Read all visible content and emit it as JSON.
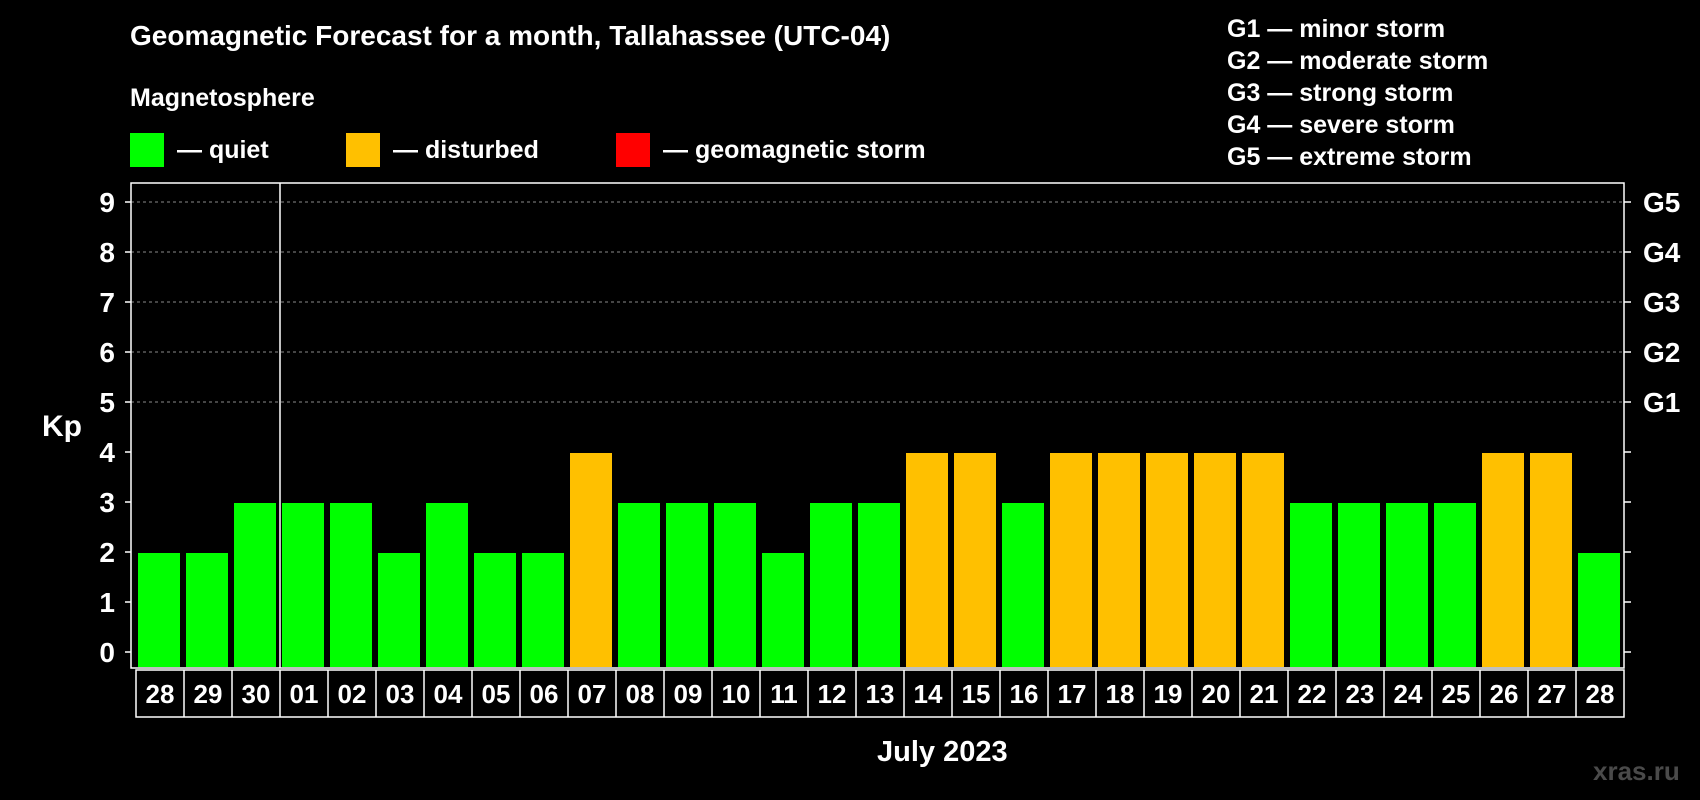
{
  "chart_data": {
    "type": "bar",
    "title": "Geomagnetic Forecast for a month, Tallahassee (UTC-04)",
    "xlabel": "July 2023",
    "ylabel": "Kp",
    "ylim": [
      0,
      9
    ],
    "yticks": [
      "0",
      "1",
      "2",
      "3",
      "4",
      "5",
      "6",
      "7",
      "8",
      "9"
    ],
    "right_ticks": [
      {
        "kp": 5,
        "label": "G1"
      },
      {
        "kp": 6,
        "label": "G2"
      },
      {
        "kp": 7,
        "label": "G3"
      },
      {
        "kp": 8,
        "label": "G4"
      },
      {
        "kp": 9,
        "label": "G5"
      }
    ],
    "categories": [
      "28",
      "29",
      "30",
      "01",
      "02",
      "03",
      "04",
      "05",
      "06",
      "07",
      "08",
      "09",
      "10",
      "11",
      "12",
      "13",
      "14",
      "15",
      "16",
      "17",
      "18",
      "19",
      "20",
      "21",
      "22",
      "23",
      "24",
      "25",
      "26",
      "27",
      "28"
    ],
    "values": [
      2,
      2,
      3,
      3,
      3,
      2,
      3,
      2,
      2,
      4,
      3,
      3,
      3,
      2,
      3,
      3,
      4,
      4,
      3,
      4,
      4,
      4,
      4,
      4,
      3,
      3,
      3,
      3,
      4,
      4,
      2
    ],
    "status": [
      "quiet",
      "quiet",
      "quiet",
      "quiet",
      "quiet",
      "quiet",
      "quiet",
      "quiet",
      "quiet",
      "disturbed",
      "quiet",
      "quiet",
      "quiet",
      "quiet",
      "quiet",
      "quiet",
      "disturbed",
      "disturbed",
      "quiet",
      "disturbed",
      "disturbed",
      "disturbed",
      "disturbed",
      "disturbed",
      "quiet",
      "quiet",
      "quiet",
      "quiet",
      "disturbed",
      "disturbed",
      "quiet"
    ],
    "month_divider_after_index": 2,
    "grid_dashed_from_kp": 5
  },
  "legend": {
    "heading": "Magnetosphere",
    "items": [
      {
        "key": "quiet",
        "label": "— quiet",
        "color": "#00ff00"
      },
      {
        "key": "disturbed",
        "label": "— disturbed",
        "color": "#ffc000"
      },
      {
        "key": "storm",
        "label": "— geomagnetic storm",
        "color": "#ff0000"
      }
    ]
  },
  "storm_scale": [
    "G1 — minor storm",
    "G2 — moderate storm",
    "G3 — strong storm",
    "G4 — severe storm",
    "G5 — extreme storm"
  ],
  "watermark": "xras.ru"
}
